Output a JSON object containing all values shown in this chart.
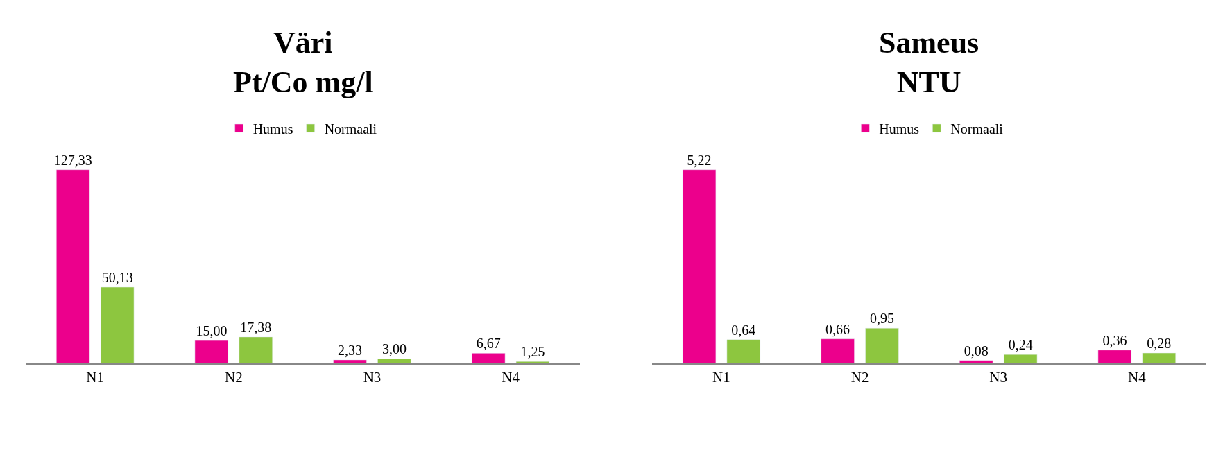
{
  "chart_data": [
    {
      "type": "bar",
      "title": "Väri\nPt/Co mg/l",
      "categories": [
        "N1",
        "N2",
        "N3",
        "N4"
      ],
      "legend": "top",
      "series": [
        {
          "name": "Humus",
          "color": "#ec008c",
          "values": [
            127.33,
            15.0,
            2.33,
            6.67
          ],
          "value_labels": [
            "127,33",
            "15,00",
            "2,33",
            "6,67"
          ]
        },
        {
          "name": "Normaali",
          "color": "#8dc63f",
          "values": [
            50.13,
            17.38,
            3.0,
            1.25
          ],
          "value_labels": [
            "50,13",
            "17,38",
            "3,00",
            "1,25"
          ]
        }
      ]
    },
    {
      "type": "bar",
      "title": "Sameus\nNTU",
      "categories": [
        "N1",
        "N2",
        "N3",
        "N4"
      ],
      "legend": "top",
      "series": [
        {
          "name": "Humus",
          "color": "#ec008c",
          "values": [
            5.22,
            0.66,
            0.08,
            0.36
          ],
          "value_labels": [
            "5,22",
            "0,66",
            "0,08",
            "0,36"
          ]
        },
        {
          "name": "Normaali",
          "color": "#8dc63f",
          "values": [
            0.64,
            0.95,
            0.24,
            0.28
          ],
          "value_labels": [
            "0,64",
            "0,95",
            "0,24",
            "0,28"
          ]
        }
      ]
    }
  ]
}
